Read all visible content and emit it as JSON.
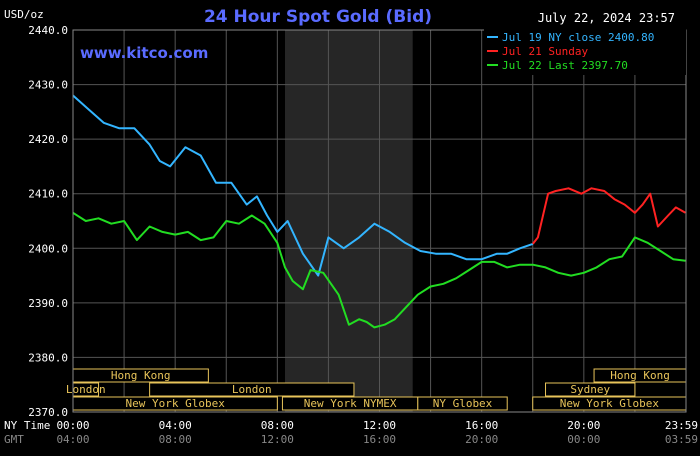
{
  "chart_data": {
    "type": "line",
    "title": "24 Hour Spot Gold (Bid)",
    "website": "www.kitco.com",
    "date_label": "July 22, 2024 23:57",
    "yunit": "USD/oz",
    "ylim": [
      2370,
      2440
    ],
    "yticks": [
      2370.0,
      2380.0,
      2390.0,
      2400.0,
      2410.0,
      2420.0,
      2430.0,
      2440.0
    ],
    "ytick_labels": [
      "2370.0",
      "2380.0",
      "2390.0",
      "2400.0",
      "2410.0",
      "2420.0",
      "2430.0",
      "2440.0"
    ],
    "xlim": [
      0,
      24
    ],
    "xtick_labels": [
      {
        "pos": 0,
        "ny": "00:00",
        "gmt": "04:00"
      },
      {
        "pos": 4,
        "ny": "04:00",
        "gmt": "08:00"
      },
      {
        "pos": 8,
        "ny": "08:00",
        "gmt": "12:00"
      },
      {
        "pos": 12,
        "ny": "12:00",
        "gmt": "16:00"
      },
      {
        "pos": 16,
        "ny": "16:00",
        "gmt": "20:00"
      },
      {
        "pos": 20,
        "ny": "20:00",
        "gmt": "00:00"
      },
      {
        "pos": 23.98,
        "ny": "23:59",
        "gmt": "03:59"
      }
    ],
    "row_label_ny": "NY Time",
    "row_label_gmt": "GMT",
    "grid": true,
    "legend_position": "top-right",
    "shaded_session": [
      8.3,
      13.3
    ],
    "colors": {
      "blue": "#33b5ff",
      "red": "#ff2222",
      "green": "#22dd22",
      "title": "#5a6bff",
      "session": "#e8c45a"
    },
    "series": [
      {
        "name": "Jul 19 NY close 2400.80",
        "color": "#33b5ff",
        "x": [
          0,
          0.6,
          1.2,
          1.8,
          2.4,
          3.0,
          3.4,
          3.8,
          4.4,
          5.0,
          5.6,
          6.2,
          6.8,
          7.2,
          7.6,
          8.0,
          8.4,
          9.0,
          9.6,
          10.0,
          10.6,
          11.2,
          11.8,
          12.4,
          13.0,
          13.6,
          14.2,
          14.8,
          15.4,
          16.0,
          16.6,
          17.0,
          17.5,
          18.0
        ],
        "values": [
          2428.0,
          2425.5,
          2423.0,
          2422.0,
          2422.0,
          2419.0,
          2416.0,
          2415.0,
          2418.5,
          2417.0,
          2412.0,
          2412.0,
          2408.0,
          2409.5,
          2406.0,
          2403.0,
          2405.0,
          2399.0,
          2395.0,
          2402.0,
          2400.0,
          2402.0,
          2404.5,
          2403.0,
          2401.0,
          2399.5,
          2399.0,
          2399.0,
          2398.0,
          2398.0,
          2399.0,
          2399.0,
          2400.0,
          2400.8
        ]
      },
      {
        "name": "Jul 21 Sunday",
        "color": "#ff2222",
        "x": [
          18.0,
          18.2,
          18.4,
          18.6,
          18.9,
          19.4,
          19.9,
          20.3,
          20.8,
          21.2,
          21.6,
          22.0,
          22.3,
          22.6,
          22.9,
          23.3,
          23.6,
          23.98
        ],
        "values": [
          2400.8,
          2402.0,
          2406.0,
          2410.0,
          2410.5,
          2411.0,
          2410.0,
          2411.0,
          2410.5,
          2409.0,
          2408.0,
          2406.5,
          2408.0,
          2410.0,
          2404.0,
          2406.0,
          2407.5,
          2406.5
        ]
      },
      {
        "name": "Jul 22 Last 2397.70",
        "color": "#22dd22",
        "x": [
          0,
          0.5,
          1.0,
          1.5,
          2.0,
          2.5,
          3.0,
          3.5,
          4.0,
          4.5,
          5.0,
          5.5,
          6.0,
          6.5,
          7.0,
          7.5,
          8.0,
          8.3,
          8.6,
          9.0,
          9.3,
          9.8,
          10.4,
          10.8,
          11.2,
          11.5,
          11.8,
          12.2,
          12.6,
          13.0,
          13.5,
          14.0,
          14.5,
          15.0,
          15.5,
          16.0,
          16.5,
          17.0,
          17.5,
          18.0,
          18.5,
          19.0,
          19.5,
          20.0,
          20.5,
          21.0,
          21.5,
          22.0,
          22.5,
          23.0,
          23.5,
          23.98
        ],
        "values": [
          2406.5,
          2405.0,
          2405.5,
          2404.5,
          2405.0,
          2401.5,
          2404.0,
          2403.0,
          2402.5,
          2403.0,
          2401.5,
          2402.0,
          2405.0,
          2404.5,
          2406.0,
          2404.5,
          2401.0,
          2396.5,
          2394.0,
          2392.5,
          2396.0,
          2395.5,
          2391.5,
          2386.0,
          2387.0,
          2386.5,
          2385.5,
          2386.0,
          2387.0,
          2389.0,
          2391.5,
          2393.0,
          2393.5,
          2394.5,
          2396.0,
          2397.5,
          2397.5,
          2396.5,
          2397.0,
          2397.0,
          2396.5,
          2395.5,
          2395.0,
          2395.5,
          2396.5,
          2398.0,
          2398.5,
          2402.0,
          2401.0,
          2399.5,
          2398.0,
          2397.7
        ]
      }
    ],
    "sessions": [
      {
        "label": "Hong Kong",
        "start": 0.0,
        "end": 5.3,
        "row": 0
      },
      {
        "label": "Hong Kong",
        "start": 20.4,
        "end": 24.0,
        "row": 0
      },
      {
        "label": "London",
        "start": 0.0,
        "end": 1.0,
        "row": 1
      },
      {
        "label": "London",
        "start": 3.0,
        "end": 11.0,
        "row": 1
      },
      {
        "label": "Sydney",
        "start": 18.5,
        "end": 22.0,
        "row": 1
      },
      {
        "label": "New York Globex",
        "start": 0.0,
        "end": 8.0,
        "row": 2
      },
      {
        "label": "New York NYMEX",
        "start": 8.2,
        "end": 13.5,
        "row": 2
      },
      {
        "label": "NY Globex",
        "start": 13.5,
        "end": 17.0,
        "row": 2
      },
      {
        "label": "New York Globex",
        "start": 18.0,
        "end": 24.0,
        "row": 2
      }
    ]
  }
}
